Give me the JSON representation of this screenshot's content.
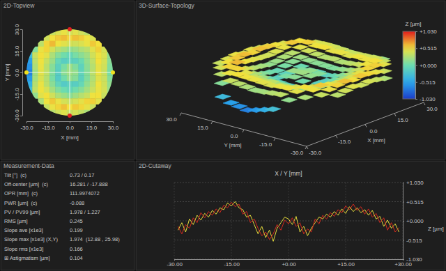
{
  "chart_data": [
    {
      "type": "heatmap",
      "title": "2D-Topview",
      "x_label": "X [mm]",
      "y_label": "Y [mm]",
      "xlim": [
        -30,
        30
      ],
      "ylim": [
        -30,
        30
      ],
      "xticks": [
        {
          "value": -30,
          "label": "-30.0"
        },
        {
          "value": -15,
          "label": "-15.0"
        },
        {
          "value": 0,
          "label": "0.0"
        },
        {
          "value": 15,
          "label": "15.0"
        },
        {
          "value": 30,
          "label": "30.0"
        }
      ],
      "yticks": [
        {
          "value": -30,
          "label": "-30.0"
        },
        {
          "value": -15,
          "label": "-15.0"
        },
        {
          "value": 0,
          "label": "0.0"
        },
        {
          "value": 15,
          "label": "15.0"
        },
        {
          "value": 30,
          "label": "30.0"
        }
      ],
      "x": [
        -28,
        -24,
        -20,
        -16,
        -12,
        -8,
        -4,
        0,
        4,
        8,
        12,
        16,
        20,
        24,
        28
      ],
      "y": [
        28,
        24,
        20,
        16,
        12,
        8,
        4,
        0,
        -4,
        -8,
        -12,
        -16,
        -20,
        -24,
        -28
      ],
      "z": [
        [
          null,
          null,
          null,
          null,
          0.35,
          0.42,
          0.48,
          0.4,
          0.45,
          0.38,
          0.3,
          null,
          null,
          null,
          null
        ],
        [
          null,
          null,
          null,
          0.38,
          0.52,
          0.58,
          0.61,
          0.55,
          0.6,
          0.57,
          0.5,
          0.42,
          null,
          null,
          null
        ],
        [
          null,
          null,
          0.3,
          0.55,
          0.62,
          0.5,
          0.45,
          0.4,
          0.38,
          0.42,
          0.48,
          0.58,
          0.52,
          null,
          null
        ],
        [
          null,
          0.1,
          0.48,
          0.55,
          0.4,
          0.28,
          0.22,
          0.15,
          0.18,
          0.25,
          0.3,
          0.45,
          0.56,
          0.4,
          null
        ],
        [
          -0.35,
          0.35,
          0.52,
          0.45,
          0.25,
          0.1,
          0.02,
          -0.05,
          0.05,
          0.12,
          0.2,
          0.38,
          0.5,
          0.42,
          0.15
        ],
        [
          -0.55,
          0.3,
          0.5,
          0.35,
          0.18,
          -0.05,
          -0.15,
          -0.1,
          -0.12,
          -0.02,
          0.15,
          0.32,
          0.52,
          0.4,
          0.12
        ],
        [
          -0.62,
          0.25,
          0.48,
          0.3,
          0.1,
          -0.12,
          0.05,
          0.18,
          0.08,
          -0.1,
          0.12,
          0.28,
          0.46,
          0.38,
          0.08
        ],
        [
          -0.7,
          0.2,
          0.45,
          0.32,
          0.08,
          -0.15,
          0.12,
          0.2,
          0.15,
          -0.08,
          0.1,
          0.3,
          0.48,
          0.35,
          0.05
        ],
        [
          -0.58,
          0.22,
          0.42,
          0.28,
          0.05,
          -0.18,
          0.02,
          0.15,
          0.1,
          -0.12,
          0.08,
          0.26,
          0.44,
          0.36,
          0.1
        ],
        [
          -0.45,
          0.28,
          0.48,
          0.3,
          0.12,
          -0.08,
          -0.18,
          -0.12,
          -0.15,
          -0.05,
          0.14,
          0.3,
          0.5,
          0.38,
          0.15
        ],
        [
          -0.3,
          0.32,
          0.5,
          0.4,
          0.22,
          0.08,
          0.0,
          -0.06,
          0.02,
          0.1,
          0.22,
          0.36,
          0.48,
          0.4,
          0.18
        ],
        [
          null,
          0.15,
          0.45,
          0.52,
          0.38,
          0.25,
          0.18,
          0.12,
          0.2,
          0.28,
          0.35,
          0.5,
          0.52,
          0.35,
          null
        ],
        [
          null,
          null,
          0.25,
          0.5,
          0.58,
          0.48,
          0.4,
          0.36,
          0.4,
          0.46,
          0.55,
          0.56,
          0.45,
          null,
          null
        ],
        [
          null,
          null,
          null,
          0.35,
          0.48,
          0.55,
          0.6,
          0.52,
          0.58,
          0.54,
          0.47,
          0.36,
          null,
          null,
          null
        ],
        [
          null,
          null,
          null,
          null,
          0.3,
          0.38,
          0.44,
          0.36,
          0.4,
          0.34,
          0.25,
          null,
          null,
          null,
          null
        ]
      ]
    },
    {
      "type": "surface",
      "title": "3D-Surface-Topology",
      "x_label": "X [mm]",
      "y_label": "Y [mm]",
      "xlim": [
        -30,
        30
      ],
      "ylim": [
        -30,
        30
      ],
      "xticks": [
        {
          "value": -30,
          "label": "-30.0"
        },
        {
          "value": -15,
          "label": "-15.0"
        },
        {
          "value": 0,
          "label": "0.0"
        },
        {
          "value": 15,
          "label": "15.0"
        },
        {
          "value": 30,
          "label": "30.0"
        }
      ],
      "yticks": [
        {
          "value": -30,
          "label": "-30.0"
        },
        {
          "value": -15,
          "label": "-15.0"
        },
        {
          "value": 0,
          "label": "0.0"
        },
        {
          "value": 15,
          "label": "15.0"
        },
        {
          "value": 30,
          "label": "30.0"
        }
      ],
      "colorbar": {
        "title": "Z [µm]",
        "range": [
          -1.03,
          1.03
        ],
        "ticks": [
          {
            "value": 1.03,
            "label": "+1.030"
          },
          {
            "value": 0.515,
            "label": "+0.515"
          },
          {
            "value": 0,
            "label": "+0.000"
          },
          {
            "value": -0.515,
            "label": "-0.515"
          },
          {
            "value": -1.03,
            "label": "-1.030"
          }
        ]
      }
    },
    {
      "type": "line",
      "title": "2D-Cutaway",
      "subtitle": "X / Y [mm]",
      "y_label": "Z [µm]",
      "grid": true,
      "xlim": [
        -30,
        30
      ],
      "ylim": [
        -1.03,
        1.03
      ],
      "xticks": [
        {
          "value": -30,
          "label": "-30.00"
        },
        {
          "value": -15,
          "label": "-15.00"
        },
        {
          "value": 0,
          "label": "+0.00"
        },
        {
          "value": 15,
          "label": "+15.00"
        },
        {
          "value": 30,
          "label": "+30.00"
        }
      ],
      "yticks": [
        {
          "value": 1.03,
          "label": "+1.030"
        },
        {
          "value": 0.515,
          "label": "+0.515"
        },
        {
          "value": 0,
          "label": "+0.000"
        },
        {
          "value": -0.515,
          "label": "-0.515"
        },
        {
          "value": -1.03,
          "label": "-1.030"
        }
      ],
      "x": [
        -29,
        -28,
        -27,
        -26,
        -25,
        -24,
        -23,
        -22,
        -21,
        -20,
        -19,
        -18,
        -17,
        -16,
        -15,
        -14,
        -13,
        -12,
        -11,
        -10,
        -9,
        -8,
        -7,
        -6,
        -5,
        -4,
        -3,
        -2,
        -1,
        0,
        1,
        2,
        3,
        4,
        5,
        6,
        7,
        8,
        9,
        10,
        11,
        12,
        13,
        14,
        15,
        16,
        17,
        18,
        19,
        20,
        21,
        22,
        23,
        24,
        25,
        26,
        27,
        28,
        29
      ],
      "series": [
        {
          "color": "#e6dc3c",
          "values": [
            -0.25,
            -0.05,
            -0.3,
            0.05,
            -0.1,
            0.15,
            0.02,
            0.2,
            0.1,
            0.28,
            0.18,
            0.35,
            0.3,
            0.48,
            0.4,
            0.52,
            0.35,
            0.3,
            0.1,
            0.15,
            -0.1,
            -0.35,
            -0.15,
            -0.45,
            -0.25,
            -0.55,
            -0.2,
            -0.05,
            0.1,
            0.05,
            -0.1,
            0.12,
            -0.3,
            -0.15,
            -0.4,
            -0.2,
            -0.05,
            0.1,
            0.05,
            0.18,
            0.1,
            0.25,
            0.15,
            0.32,
            0.2,
            0.38,
            0.25,
            0.35,
            0.22,
            0.3,
            0.15,
            0.28,
            0.05,
            0.12,
            -0.15,
            0.02,
            -0.2,
            -0.08,
            -0.3
          ]
        },
        {
          "color": "#d42a1e",
          "values": [
            -0.15,
            -0.35,
            -0.1,
            -0.2,
            0.08,
            -0.05,
            0.22,
            0.08,
            0.25,
            0.15,
            0.32,
            0.22,
            0.42,
            0.35,
            0.5,
            0.38,
            0.45,
            0.18,
            0.25,
            -0.05,
            0.05,
            -0.2,
            -0.4,
            -0.3,
            -0.5,
            -0.35,
            -0.1,
            -0.25,
            0.02,
            -0.08,
            0.08,
            -0.15,
            -0.05,
            -0.35,
            -0.22,
            -0.3,
            0.05,
            -0.08,
            0.15,
            0.05,
            0.22,
            0.12,
            0.3,
            0.22,
            0.4,
            0.3,
            0.45,
            0.28,
            0.38,
            0.18,
            0.32,
            0.1,
            0.2,
            -0.05,
            0.08,
            -0.25,
            -0.05,
            -0.3,
            -0.18
          ]
        }
      ]
    }
  ],
  "measurement_data": {
    "title": "Measurement-Data",
    "rows": [
      [
        "Tilt [°]  (c)",
        "0.73 / 0.17"
      ],
      [
        "Off-center [µm]  (c)",
        "16.281 / -17.888"
      ],
      [
        "OPR [mm]  (c)",
        "111.9974072"
      ],
      [
        "PWR [µm]  (c)",
        "-0.088"
      ],
      [
        "PV / PV99 [µm]",
        "1.978 / 1.227"
      ],
      [
        "RMS [µm]",
        "0.245"
      ],
      [
        "Slope ave [x1e3]",
        "0.199"
      ],
      [
        "Slope max [x1e3] (X,Y)",
        "1.974  (12.88 , 25.98)"
      ],
      [
        "Slope rms [x1e3]",
        "0.166"
      ],
      [
        "⊞ Astigmatism [µm]",
        "0.104"
      ]
    ]
  }
}
